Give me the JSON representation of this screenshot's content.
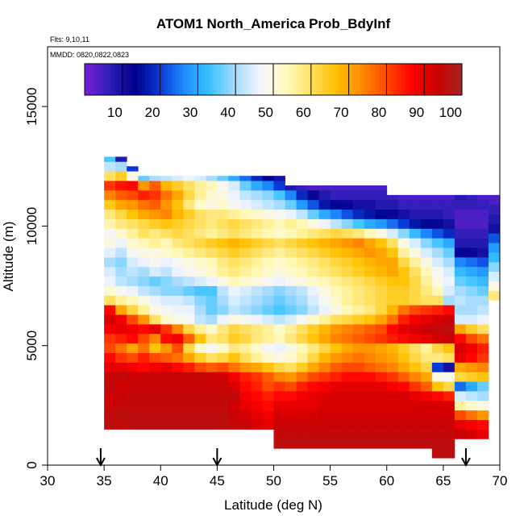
{
  "chart_data": {
    "type": "heatmap",
    "title": "ATOM1 North_America Prob_BdyInf",
    "subtitle_flts": "Flts: 9,10,11",
    "subtitle_mmdd": "MMDD: 0820,0822,0823",
    "xlabel": "Latitude (deg N)",
    "ylabel": "Altitude (m)",
    "xlim": [
      30,
      70
    ],
    "ylim": [
      0,
      17500
    ],
    "xticks": [
      30,
      35,
      40,
      45,
      50,
      55,
      60,
      65,
      70
    ],
    "yticks": [
      0,
      5000,
      10000,
      15000
    ],
    "colorbar": {
      "ticks": [
        10,
        20,
        30,
        40,
        50,
        60,
        70,
        80,
        90,
        100
      ],
      "range": [
        0,
        100
      ],
      "colors": [
        "#7a1fd6",
        "#2c1fb8",
        "#00008b",
        "#0a3ad6",
        "#1e8fff",
        "#3cc3ff",
        "#a8dcff",
        "#f4f6ff",
        "#fffac0",
        "#ffe060",
        "#ffc000",
        "#ff8c00",
        "#ff4a00",
        "#ff0000",
        "#cc0000",
        "#a52323"
      ]
    },
    "cell_size": {
      "dlat": 1.0,
      "dalt": 400
    },
    "arrows_lat": [
      34.7,
      45.0,
      67.0
    ],
    "profiles": [
      {
        "lat": 35.5,
        "alt_min": 1500,
        "alt_max": 12900,
        "values": [
          96,
          95,
          94,
          93,
          95,
          94,
          90,
          86,
          80,
          82,
          88,
          92,
          86,
          60,
          52,
          46,
          44,
          40,
          45,
          50,
          48,
          55,
          58,
          65,
          74,
          82,
          60,
          42,
          34
        ]
      },
      {
        "lat": 36.5,
        "alt_min": 1500,
        "alt_max": 12900,
        "values": [
          95,
          96,
          95,
          94,
          93,
          95,
          90,
          82,
          76,
          84,
          90,
          88,
          70,
          56,
          48,
          42,
          40,
          38,
          42,
          46,
          52,
          58,
          62,
          70,
          78,
          85,
          64,
          40,
          8
        ]
      },
      {
        "lat": 37.5,
        "alt_min": 1500,
        "alt_max": 12500,
        "values": [
          96,
          96,
          95,
          95,
          94,
          93,
          88,
          80,
          70,
          86,
          88,
          80,
          62,
          54,
          46,
          40,
          42,
          44,
          48,
          52,
          56,
          60,
          66,
          72,
          80,
          86,
          50,
          20
        ]
      },
      {
        "lat": 38.5,
        "alt_min": 1500,
        "alt_max": 12100,
        "values": [
          96,
          96,
          95,
          95,
          94,
          94,
          86,
          84,
          76,
          80,
          86,
          72,
          56,
          50,
          42,
          38,
          40,
          46,
          50,
          54,
          60,
          62,
          70,
          76,
          84,
          72,
          36
        ]
      },
      {
        "lat": 39.5,
        "alt_min": 1500,
        "alt_max": 12100,
        "values": [
          96,
          96,
          95,
          95,
          94,
          94,
          88,
          80,
          66,
          74,
          90,
          60,
          50,
          46,
          40,
          36,
          44,
          48,
          50,
          56,
          58,
          64,
          72,
          78,
          82,
          78,
          40
        ]
      },
      {
        "lat": 40.5,
        "alt_min": 1500,
        "alt_max": 12100,
        "values": [
          96,
          96,
          95,
          95,
          94,
          94,
          90,
          78,
          72,
          86,
          82,
          52,
          48,
          44,
          38,
          38,
          42,
          46,
          52,
          54,
          60,
          66,
          74,
          72,
          76,
          68,
          42
        ]
      },
      {
        "lat": 41.5,
        "alt_min": 1500,
        "alt_max": 12100,
        "values": [
          96,
          96,
          95,
          95,
          94,
          94,
          86,
          76,
          80,
          88,
          74,
          50,
          46,
          44,
          38,
          40,
          46,
          48,
          54,
          58,
          62,
          64,
          68,
          66,
          70,
          64,
          44
        ]
      },
      {
        "lat": 42.5,
        "alt_min": 1500,
        "alt_max": 12100,
        "values": [
          96,
          96,
          95,
          95,
          94,
          94,
          84,
          70,
          62,
          78,
          62,
          48,
          46,
          42,
          36,
          42,
          48,
          50,
          56,
          60,
          60,
          62,
          64,
          58,
          62,
          60,
          46
        ]
      },
      {
        "lat": 43.5,
        "alt_min": 1500,
        "alt_max": 12100,
        "values": [
          96,
          96,
          95,
          95,
          94,
          94,
          80,
          64,
          52,
          66,
          56,
          42,
          40,
          38,
          34,
          44,
          50,
          52,
          58,
          62,
          58,
          60,
          60,
          52,
          56,
          56,
          44
        ]
      },
      {
        "lat": 44.5,
        "alt_min": 1500,
        "alt_max": 12100,
        "values": [
          96,
          96,
          95,
          95,
          94,
          94,
          78,
          60,
          48,
          58,
          52,
          40,
          36,
          36,
          34,
          46,
          52,
          54,
          60,
          64,
          56,
          58,
          58,
          50,
          52,
          54,
          40
        ]
      },
      {
        "lat": 45.5,
        "alt_min": 1500,
        "alt_max": 12100,
        "values": [
          96,
          96,
          95,
          95,
          94,
          93,
          80,
          62,
          52,
          60,
          58,
          46,
          38,
          40,
          42,
          50,
          56,
          58,
          62,
          66,
          58,
          60,
          58,
          52,
          50,
          48,
          36
        ]
      },
      {
        "lat": 46.5,
        "alt_min": 1500,
        "alt_max": 12100,
        "values": [
          95,
          94,
          93,
          95,
          92,
          88,
          76,
          66,
          58,
          64,
          62,
          50,
          42,
          44,
          46,
          54,
          58,
          60,
          64,
          68,
          60,
          62,
          56,
          48,
          46,
          44,
          30
        ]
      },
      {
        "lat": 47.5,
        "alt_min": 1500,
        "alt_max": 12100,
        "values": [
          94,
          92,
          90,
          88,
          86,
          84,
          72,
          60,
          56,
          62,
          60,
          48,
          40,
          42,
          44,
          52,
          56,
          58,
          62,
          66,
          58,
          60,
          54,
          46,
          42,
          36,
          24
        ]
      },
      {
        "lat": 48.5,
        "alt_min": 1500,
        "alt_max": 12100,
        "values": [
          92,
          90,
          88,
          86,
          84,
          82,
          70,
          56,
          52,
          58,
          58,
          46,
          38,
          40,
          42,
          50,
          54,
          56,
          60,
          64,
          56,
          58,
          52,
          44,
          40,
          30,
          18
        ]
      },
      {
        "lat": 49.5,
        "alt_min": 1500,
        "alt_max": 12100,
        "values": [
          90,
          88,
          86,
          84,
          80,
          78,
          66,
          52,
          48,
          56,
          56,
          44,
          36,
          38,
          40,
          48,
          52,
          54,
          58,
          62,
          54,
          56,
          50,
          42,
          38,
          26,
          14
        ]
      },
      {
        "lat": 50.5,
        "alt_min": 700,
        "alt_max": 12100,
        "values": [
          96,
          95,
          94,
          92,
          90,
          86,
          82,
          74,
          62,
          50,
          46,
          54,
          52,
          42,
          34,
          36,
          38,
          46,
          50,
          52,
          56,
          60,
          52,
          54,
          48,
          40,
          34,
          20,
          10
        ]
      },
      {
        "lat": 51.5,
        "alt_min": 700,
        "alt_max": 11700,
        "values": [
          96,
          95,
          94,
          92,
          90,
          86,
          80,
          72,
          60,
          52,
          50,
          58,
          56,
          44,
          36,
          38,
          40,
          48,
          52,
          54,
          58,
          62,
          54,
          56,
          46,
          36,
          26,
          8
        ]
      },
      {
        "lat": 52.5,
        "alt_min": 700,
        "alt_max": 11700,
        "values": [
          96,
          95,
          94,
          92,
          90,
          88,
          84,
          76,
          64,
          56,
          54,
          62,
          60,
          48,
          38,
          40,
          42,
          50,
          54,
          56,
          60,
          64,
          56,
          54,
          42,
          28,
          18,
          6
        ]
      },
      {
        "lat": 53.5,
        "alt_min": 700,
        "alt_max": 11700,
        "values": [
          96,
          95,
          94,
          92,
          90,
          90,
          86,
          80,
          70,
          62,
          58,
          66,
          64,
          52,
          42,
          44,
          46,
          52,
          56,
          58,
          62,
          66,
          58,
          50,
          36,
          22,
          12,
          4
        ]
      },
      {
        "lat": 54.5,
        "alt_min": 700,
        "alt_max": 11700,
        "values": [
          96,
          95,
          94,
          93,
          92,
          91,
          88,
          82,
          74,
          68,
          62,
          70,
          68,
          56,
          46,
          48,
          50,
          54,
          58,
          60,
          64,
          68,
          60,
          46,
          30,
          16,
          8,
          4
        ]
      },
      {
        "lat": 55.5,
        "alt_min": 700,
        "alt_max": 11700,
        "values": [
          96,
          95,
          94,
          93,
          92,
          92,
          90,
          84,
          78,
          72,
          66,
          74,
          72,
          60,
          50,
          52,
          54,
          56,
          60,
          62,
          66,
          70,
          62,
          42,
          26,
          14,
          6,
          4
        ]
      },
      {
        "lat": 56.5,
        "alt_min": 700,
        "alt_max": 11700,
        "values": [
          96,
          95,
          94,
          93,
          92,
          92,
          90,
          86,
          80,
          74,
          70,
          76,
          74,
          62,
          54,
          56,
          56,
          58,
          62,
          64,
          68,
          72,
          60,
          38,
          22,
          12,
          6,
          4
        ]
      },
      {
        "lat": 57.5,
        "alt_min": 700,
        "alt_max": 11700,
        "values": [
          96,
          95,
          94,
          93,
          92,
          92,
          90,
          86,
          80,
          76,
          72,
          78,
          76,
          64,
          56,
          58,
          58,
          60,
          64,
          66,
          70,
          74,
          58,
          34,
          18,
          10,
          6,
          4
        ]
      },
      {
        "lat": 58.5,
        "alt_min": 700,
        "alt_max": 11700,
        "values": [
          96,
          95,
          94,
          93,
          92,
          92,
          90,
          86,
          78,
          74,
          72,
          80,
          78,
          66,
          58,
          60,
          60,
          62,
          66,
          68,
          72,
          70,
          54,
          30,
          16,
          10,
          6,
          4
        ]
      },
      {
        "lat": 59.5,
        "alt_min": 700,
        "alt_max": 11700,
        "values": [
          96,
          95,
          94,
          93,
          92,
          92,
          90,
          84,
          76,
          72,
          70,
          82,
          80,
          70,
          62,
          62,
          62,
          64,
          68,
          70,
          70,
          66,
          50,
          28,
          14,
          8,
          6,
          4
        ]
      },
      {
        "lat": 60.5,
        "alt_min": 700,
        "alt_max": 11300,
        "values": [
          96,
          95,
          94,
          93,
          92,
          92,
          88,
          82,
          74,
          70,
          68,
          84,
          86,
          76,
          68,
          64,
          64,
          66,
          70,
          70,
          66,
          60,
          44,
          24,
          12,
          8,
          6
        ]
      },
      {
        "lat": 61.5,
        "alt_min": 700,
        "alt_max": 11300,
        "values": [
          96,
          95,
          94,
          93,
          92,
          92,
          86,
          78,
          70,
          66,
          64,
          86,
          90,
          84,
          76,
          64,
          64,
          66,
          66,
          62,
          56,
          50,
          38,
          20,
          10,
          6,
          4
        ]
      },
      {
        "lat": 62.5,
        "alt_min": 700,
        "alt_max": 11300,
        "values": [
          96,
          95,
          94,
          93,
          92,
          90,
          82,
          74,
          66,
          62,
          60,
          88,
          92,
          88,
          80,
          62,
          62,
          62,
          60,
          56,
          50,
          44,
          32,
          16,
          8,
          6,
          4
        ]
      },
      {
        "lat": 63.5,
        "alt_min": 700,
        "alt_max": 11300,
        "values": [
          96,
          95,
          94,
          93,
          92,
          88,
          78,
          70,
          62,
          58,
          56,
          90,
          94,
          90,
          82,
          60,
          58,
          56,
          54,
          50,
          44,
          38,
          26,
          14,
          8,
          6,
          4
        ]
      },
      {
        "lat": 64.5,
        "alt_min": 300,
        "alt_max": 11300,
        "values": [
          96,
          96,
          95,
          94,
          93,
          92,
          86,
          66,
          50,
          20,
          58,
          62,
          92,
          95,
          92,
          84,
          60,
          54,
          50,
          48,
          44,
          40,
          34,
          22,
          12,
          8,
          6,
          4
        ]
      },
      {
        "lat": 65.5,
        "alt_min": 300,
        "alt_max": 11300,
        "values": [
          96,
          96,
          95,
          94,
          93,
          92,
          84,
          62,
          48,
          10,
          60,
          66,
          94,
          96,
          94,
          86,
          40,
          44,
          46,
          44,
          40,
          36,
          30,
          18,
          10,
          6,
          6,
          4
        ]
      },
      {
        "lat": 66.5,
        "alt_min": 1100,
        "alt_max": 11300,
        "values": [
          94,
          90,
          80,
          56,
          44,
          24,
          62,
          70,
          90,
          92,
          86,
          70,
          44,
          40,
          42,
          40,
          36,
          32,
          26,
          14,
          8,
          6,
          4,
          4,
          6,
          8
        ]
      },
      {
        "lat": 67.5,
        "alt_min": 1100,
        "alt_max": 11300,
        "values": [
          92,
          88,
          76,
          52,
          42,
          30,
          64,
          72,
          86,
          88,
          80,
          64,
          44,
          40,
          40,
          38,
          34,
          30,
          24,
          12,
          8,
          6,
          4,
          4,
          6,
          6
        ]
      },
      {
        "lat": 68.5,
        "alt_min": 1100,
        "alt_max": 11300,
        "values": [
          90,
          86,
          72,
          50,
          40,
          36,
          66,
          74,
          82,
          84,
          76,
          60,
          46,
          42,
          40,
          36,
          32,
          28,
          22,
          10,
          8,
          6,
          4,
          4,
          6,
          4
        ]
      },
      {
        "lat": 69.5,
        "alt_min": 6900,
        "alt_max": 11300,
        "values": [
          58,
          50,
          44,
          38,
          32,
          28,
          22,
          10,
          8,
          6,
          4
        ]
      }
    ]
  }
}
